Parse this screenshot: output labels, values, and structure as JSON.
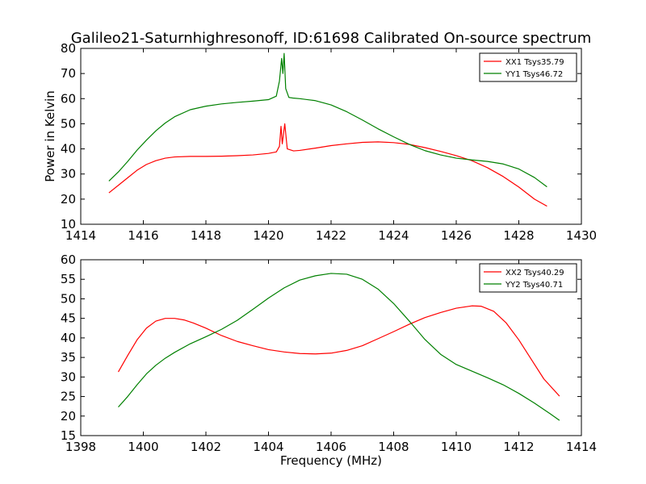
{
  "chart_data": [
    {
      "type": "line",
      "title": "Galileo21-Saturnhighresonoff, ID:61698 Calibrated On-source spectrum",
      "xlabel": "",
      "ylabel": "Power in Kelvin",
      "xlim": [
        1414,
        1430
      ],
      "ylim": [
        10,
        80
      ],
      "xticks": [
        "1414",
        "1416",
        "1418",
        "1420",
        "1422",
        "1424",
        "1426",
        "1428",
        "1430"
      ],
      "yticks": [
        "10",
        "20",
        "30",
        "40",
        "50",
        "60",
        "70",
        "80"
      ],
      "legend_position": "top-right",
      "series": [
        {
          "name": "XX1 Tsys35.79",
          "color": "#ff0000",
          "x": [
            1414.9,
            1415.2,
            1415.5,
            1415.8,
            1416.1,
            1416.4,
            1416.7,
            1417.0,
            1417.5,
            1418.0,
            1418.5,
            1419.0,
            1419.5,
            1420.0,
            1420.25,
            1420.35,
            1420.4,
            1420.44,
            1420.48,
            1420.52,
            1420.6,
            1420.8,
            1421.0,
            1421.5,
            1422.0,
            1422.5,
            1423.0,
            1423.5,
            1424.0,
            1424.5,
            1425.0,
            1425.5,
            1426.0,
            1426.5,
            1427.0,
            1427.5,
            1428.0,
            1428.5,
            1428.9
          ],
          "y": [
            22.5,
            25.5,
            28.5,
            31.5,
            33.8,
            35.3,
            36.3,
            36.8,
            37.0,
            37.0,
            37.1,
            37.3,
            37.6,
            38.2,
            38.8,
            41.0,
            49.0,
            42.0,
            46.0,
            50.0,
            40.0,
            39.2,
            39.4,
            40.3,
            41.3,
            42.0,
            42.6,
            42.8,
            42.5,
            41.8,
            40.5,
            39.0,
            37.3,
            35.3,
            32.5,
            29.0,
            24.8,
            20.0,
            17.2
          ],
          "values": [
            22.5,
            25.5,
            28.5,
            31.5,
            33.8,
            35.3,
            36.3,
            36.8,
            37.0,
            37.0,
            37.1,
            37.3,
            37.6,
            38.2,
            38.8,
            41.0,
            49.0,
            42.0,
            46.0,
            50.0,
            40.0,
            39.2,
            39.4,
            40.3,
            41.3,
            42.0,
            42.6,
            42.8,
            42.5,
            41.8,
            40.5,
            39.0,
            37.3,
            35.3,
            32.5,
            29.0,
            24.8,
            20.0,
            17.2
          ]
        },
        {
          "name": "YY1 Tsys46.72",
          "color": "#008000",
          "x": [
            1414.9,
            1415.2,
            1415.5,
            1415.8,
            1416.1,
            1416.4,
            1416.7,
            1417.0,
            1417.5,
            1418.0,
            1418.5,
            1419.0,
            1419.5,
            1420.0,
            1420.25,
            1420.35,
            1420.42,
            1420.46,
            1420.5,
            1420.55,
            1420.65,
            1420.8,
            1421.0,
            1421.5,
            1422.0,
            1422.5,
            1423.0,
            1423.5,
            1424.0,
            1424.5,
            1425.0,
            1425.5,
            1426.0,
            1426.5,
            1427.0,
            1427.5,
            1428.0,
            1428.5,
            1428.9
          ],
          "y": [
            27.2,
            30.8,
            35.0,
            39.5,
            43.5,
            47.2,
            50.3,
            52.8,
            55.6,
            57.0,
            57.9,
            58.5,
            59.0,
            59.6,
            61.0,
            67.0,
            76.0,
            70.0,
            78.0,
            64.0,
            60.5,
            60.2,
            60.0,
            59.2,
            57.5,
            54.8,
            51.5,
            48.0,
            44.8,
            41.8,
            39.3,
            37.6,
            36.3,
            35.6,
            35.0,
            34.0,
            32.0,
            28.6,
            24.9
          ],
          "values": [
            27.2,
            30.8,
            35.0,
            39.5,
            43.5,
            47.2,
            50.3,
            52.8,
            55.6,
            57.0,
            57.9,
            58.5,
            59.0,
            59.6,
            61.0,
            67.0,
            76.0,
            70.0,
            78.0,
            64.0,
            60.5,
            60.2,
            60.0,
            59.2,
            57.5,
            54.8,
            51.5,
            48.0,
            44.8,
            41.8,
            39.3,
            37.6,
            36.3,
            35.6,
            35.0,
            34.0,
            32.0,
            28.6,
            24.9
          ]
        }
      ]
    },
    {
      "type": "line",
      "title": "",
      "xlabel": "Frequency (MHz)",
      "ylabel": "",
      "xlim": [
        1398,
        1414
      ],
      "ylim": [
        15,
        60
      ],
      "xticks": [
        "1398",
        "1400",
        "1402",
        "1404",
        "1406",
        "1408",
        "1410",
        "1412",
        "1414"
      ],
      "yticks": [
        "15",
        "20",
        "25",
        "30",
        "35",
        "40",
        "45",
        "50",
        "55",
        "60"
      ],
      "legend_position": "top-right",
      "series": [
        {
          "name": "XX2 Tsys40.29",
          "color": "#ff0000",
          "x": [
            1399.2,
            1399.5,
            1399.8,
            1400.1,
            1400.4,
            1400.7,
            1401.0,
            1401.3,
            1401.6,
            1402.0,
            1402.5,
            1403.0,
            1403.5,
            1404.0,
            1404.5,
            1405.0,
            1405.5,
            1406.0,
            1406.5,
            1407.0,
            1407.5,
            1408.0,
            1408.5,
            1409.0,
            1409.5,
            1410.0,
            1410.5,
            1410.8,
            1411.2,
            1411.6,
            1412.0,
            1412.4,
            1412.8,
            1413.3
          ],
          "y": [
            31.3,
            35.5,
            39.5,
            42.5,
            44.3,
            45.0,
            45.0,
            44.6,
            43.8,
            42.5,
            40.6,
            39.1,
            38.0,
            37.0,
            36.4,
            36.0,
            35.9,
            36.1,
            36.8,
            38.0,
            39.8,
            41.6,
            43.5,
            45.2,
            46.5,
            47.6,
            48.2,
            48.1,
            46.8,
            43.8,
            39.5,
            34.5,
            29.5,
            25.1
          ],
          "values": [
            31.3,
            35.5,
            39.5,
            42.5,
            44.3,
            45.0,
            45.0,
            44.6,
            43.8,
            42.5,
            40.6,
            39.1,
            38.0,
            37.0,
            36.4,
            36.0,
            35.9,
            36.1,
            36.8,
            38.0,
            39.8,
            41.6,
            43.5,
            45.2,
            46.5,
            47.6,
            48.2,
            48.1,
            46.8,
            43.8,
            39.5,
            34.5,
            29.5,
            25.1
          ]
        },
        {
          "name": "YY2 Tsys40.71",
          "color": "#008000",
          "x": [
            1399.2,
            1399.5,
            1399.8,
            1400.1,
            1400.4,
            1400.7,
            1401.0,
            1401.5,
            1402.0,
            1402.5,
            1403.0,
            1403.5,
            1404.0,
            1404.5,
            1405.0,
            1405.5,
            1406.0,
            1406.5,
            1407.0,
            1407.5,
            1408.0,
            1408.5,
            1409.0,
            1409.5,
            1410.0,
            1410.5,
            1411.0,
            1411.5,
            1412.0,
            1412.5,
            1413.0,
            1413.3
          ],
          "y": [
            22.3,
            25.0,
            28.0,
            30.8,
            33.0,
            34.8,
            36.3,
            38.5,
            40.3,
            42.2,
            44.5,
            47.3,
            50.2,
            52.8,
            54.8,
            55.9,
            56.5,
            56.3,
            55.0,
            52.5,
            48.8,
            44.3,
            39.6,
            35.8,
            33.2,
            31.5,
            29.8,
            28.0,
            25.8,
            23.3,
            20.6,
            18.9
          ],
          "values": [
            22.3,
            25.0,
            28.0,
            30.8,
            33.0,
            34.8,
            36.3,
            38.5,
            40.3,
            42.2,
            44.5,
            47.3,
            50.2,
            52.8,
            54.8,
            55.9,
            56.5,
            56.3,
            55.0,
            52.5,
            48.8,
            44.3,
            39.6,
            35.8,
            33.2,
            31.5,
            29.8,
            28.0,
            25.8,
            23.3,
            20.6,
            18.9
          ]
        }
      ]
    }
  ]
}
